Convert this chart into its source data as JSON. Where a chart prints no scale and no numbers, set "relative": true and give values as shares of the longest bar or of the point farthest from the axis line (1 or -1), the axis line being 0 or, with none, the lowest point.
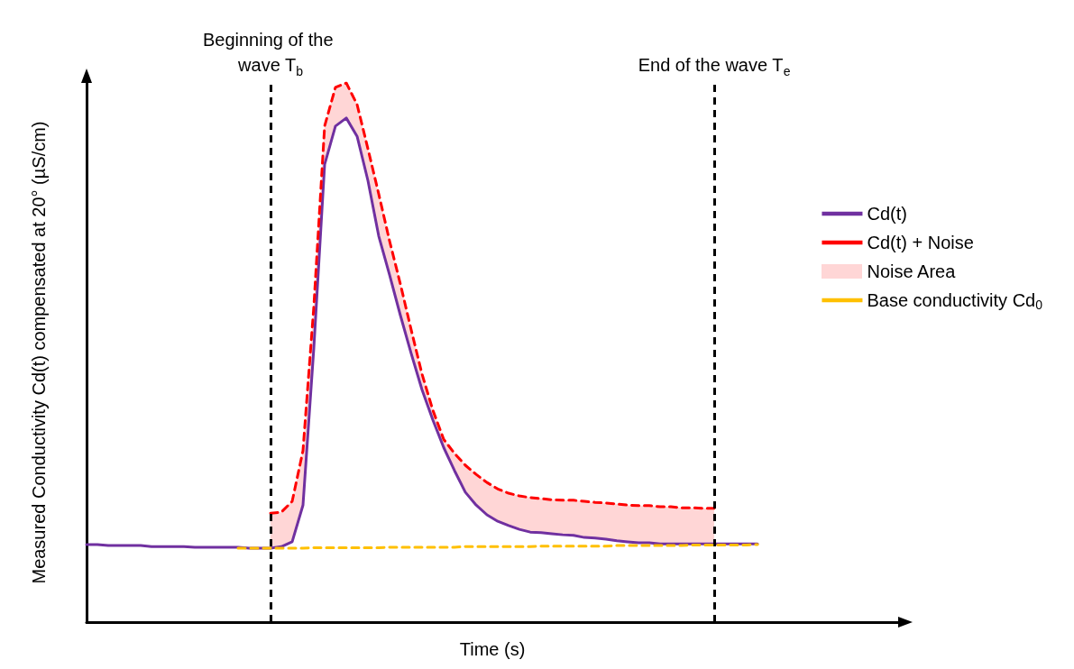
{
  "chart_data": {
    "type": "line",
    "relative": true,
    "xlabel": "Time (s)",
    "ylabel": "Measured Conductivity Cd(t) compensated at 20° (µS/cm)",
    "legend": "right",
    "marker": "none",
    "grid": false,
    "categories": [
      null,
      null,
      null,
      null,
      null,
      null,
      null,
      null,
      null,
      null,
      null,
      null,
      null,
      null,
      null,
      null,
      null,
      null,
      null,
      null,
      null,
      null,
      null,
      null,
      null,
      null,
      null,
      null,
      null,
      null,
      null,
      null,
      null,
      null,
      null,
      null,
      null,
      null,
      null,
      null,
      null,
      null,
      null,
      null,
      null,
      null,
      null,
      null,
      null,
      null,
      null,
      null,
      null,
      null,
      null,
      null,
      null,
      null,
      null,
      null,
      null,
      null,
      null,
      null,
      null,
      null,
      null,
      null,
      null,
      null,
      null,
      null,
      null,
      null,
      null,
      null
    ],
    "series": [
      {
        "name": "Cd(t)",
        "color": "#7030a0",
        "line_style": "solid",
        "values": [
          0.144,
          0.144,
          0.142,
          0.142,
          0.142,
          0.142,
          0.14,
          0.14,
          0.14,
          0.14,
          0.139,
          0.139,
          0.139,
          0.139,
          0.139,
          0.137,
          0.137,
          0.137,
          0.14,
          0.149,
          0.217,
          0.508,
          0.849,
          0.92,
          0.935,
          0.901,
          0.819,
          0.716,
          0.644,
          0.569,
          0.498,
          0.431,
          0.375,
          0.324,
          0.281,
          0.241,
          0.217,
          0.199,
          0.187,
          0.179,
          0.172,
          0.167,
          0.166,
          0.164,
          0.162,
          0.161,
          0.157,
          0.156,
          0.154,
          0.151,
          0.149,
          0.147,
          0.147,
          0.145,
          0.145,
          0.145,
          0.145,
          0.145,
          0.145,
          0.145,
          0.145,
          0.145,
          0.145,
          null,
          null,
          null,
          null,
          null,
          null,
          null,
          null,
          null,
          null,
          null,
          null,
          null
        ]
      },
      {
        "name": "Cd(t) + Noise",
        "color": "#ff0000",
        "line_style": "dashed",
        "values": [
          null,
          null,
          null,
          null,
          null,
          null,
          null,
          null,
          null,
          null,
          null,
          null,
          null,
          null,
          null,
          null,
          null,
          0.202,
          0.204,
          0.224,
          0.318,
          0.585,
          0.92,
          0.992,
          1,
          0.96,
          0.878,
          0.794,
          0.707,
          0.627,
          0.542,
          0.46,
          0.393,
          0.339,
          0.313,
          0.291,
          0.274,
          0.259,
          0.247,
          0.239,
          0.234,
          0.231,
          0.229,
          0.227,
          0.226,
          0.226,
          0.224,
          0.222,
          0.221,
          0.219,
          0.217,
          0.216,
          0.216,
          0.214,
          0.214,
          0.212,
          0.212,
          0.211,
          0.211,
          null,
          null,
          null,
          null,
          null,
          null,
          null,
          null,
          null,
          null,
          null,
          null,
          null,
          null,
          null,
          null,
          null
        ],
        "upper": [
          null,
          null,
          null,
          null,
          null,
          null,
          null,
          null,
          null,
          null,
          null,
          null,
          null,
          null,
          null,
          null,
          null,
          0.202,
          0.204,
          0.224,
          0.318,
          0.585,
          0.92,
          0.992,
          1,
          0.96,
          0.878,
          0.794,
          0.707,
          0.627,
          0.542,
          0.46,
          0.393,
          0.339,
          0.313,
          0.291,
          0.274,
          0.259,
          0.247,
          0.239,
          0.234,
          0.231,
          0.229,
          0.227,
          0.226,
          0.226,
          0.224,
          0.222,
          0.221,
          0.219,
          0.217,
          0.216,
          0.216,
          0.214,
          0.214,
          0.212,
          0.212,
          0.211,
          0.211,
          null,
          null,
          null,
          null,
          null,
          null,
          null,
          null,
          null,
          null,
          null,
          null,
          null,
          null,
          null,
          null,
          null
        ],
        "lower": [
          null,
          null,
          null,
          null,
          null,
          null,
          null,
          null,
          null,
          null,
          null,
          null,
          null,
          null,
          null,
          null,
          null,
          0.137,
          0.14,
          0.149,
          0.217,
          0.508,
          0.849,
          0.92,
          0.935,
          0.901,
          0.819,
          0.716,
          0.644,
          0.569,
          0.498,
          0.431,
          0.375,
          0.324,
          0.281,
          0.241,
          0.217,
          0.199,
          0.187,
          0.179,
          0.172,
          0.167,
          0.166,
          0.164,
          0.162,
          0.161,
          0.157,
          0.156,
          0.154,
          0.151,
          0.149,
          0.147,
          0.147,
          0.145,
          0.145,
          0.145,
          0.145,
          0.145,
          0.145,
          null,
          null,
          null,
          null,
          null,
          null,
          null,
          null,
          null,
          null,
          null,
          null,
          null,
          null,
          null,
          null,
          null
        ]
      },
      {
        "name": "Base conductivity Cd$_{0}$",
        "color": "#ffc000",
        "line_style": "dashed",
        "values": [
          null,
          null,
          null,
          null,
          null,
          null,
          null,
          null,
          null,
          null,
          null,
          null,
          null,
          null,
          0.137,
          0.137,
          0.137,
          0.137,
          0.137,
          0.137,
          0.137,
          0.138,
          0.138,
          0.138,
          0.138,
          0.138,
          0.138,
          0.138,
          0.139,
          0.139,
          0.139,
          0.139,
          0.139,
          0.139,
          0.139,
          0.14,
          0.14,
          0.14,
          0.14,
          0.14,
          0.14,
          0.14,
          0.141,
          0.141,
          0.141,
          0.141,
          0.141,
          0.141,
          0.141,
          0.142,
          0.142,
          0.142,
          0.142,
          0.142,
          0.142,
          0.142,
          0.143,
          0.143,
          0.143,
          0.143,
          0.143,
          0.143,
          0.144,
          null,
          null,
          null,
          null,
          null,
          null,
          null,
          null,
          null,
          null,
          null,
          null,
          null
        ]
      }
    ],
    "annotations": [
      "Beginning of the wave T$_{b}$",
      "End of the wave T$_{e}$",
      "Noise Area"
    ]
  }
}
